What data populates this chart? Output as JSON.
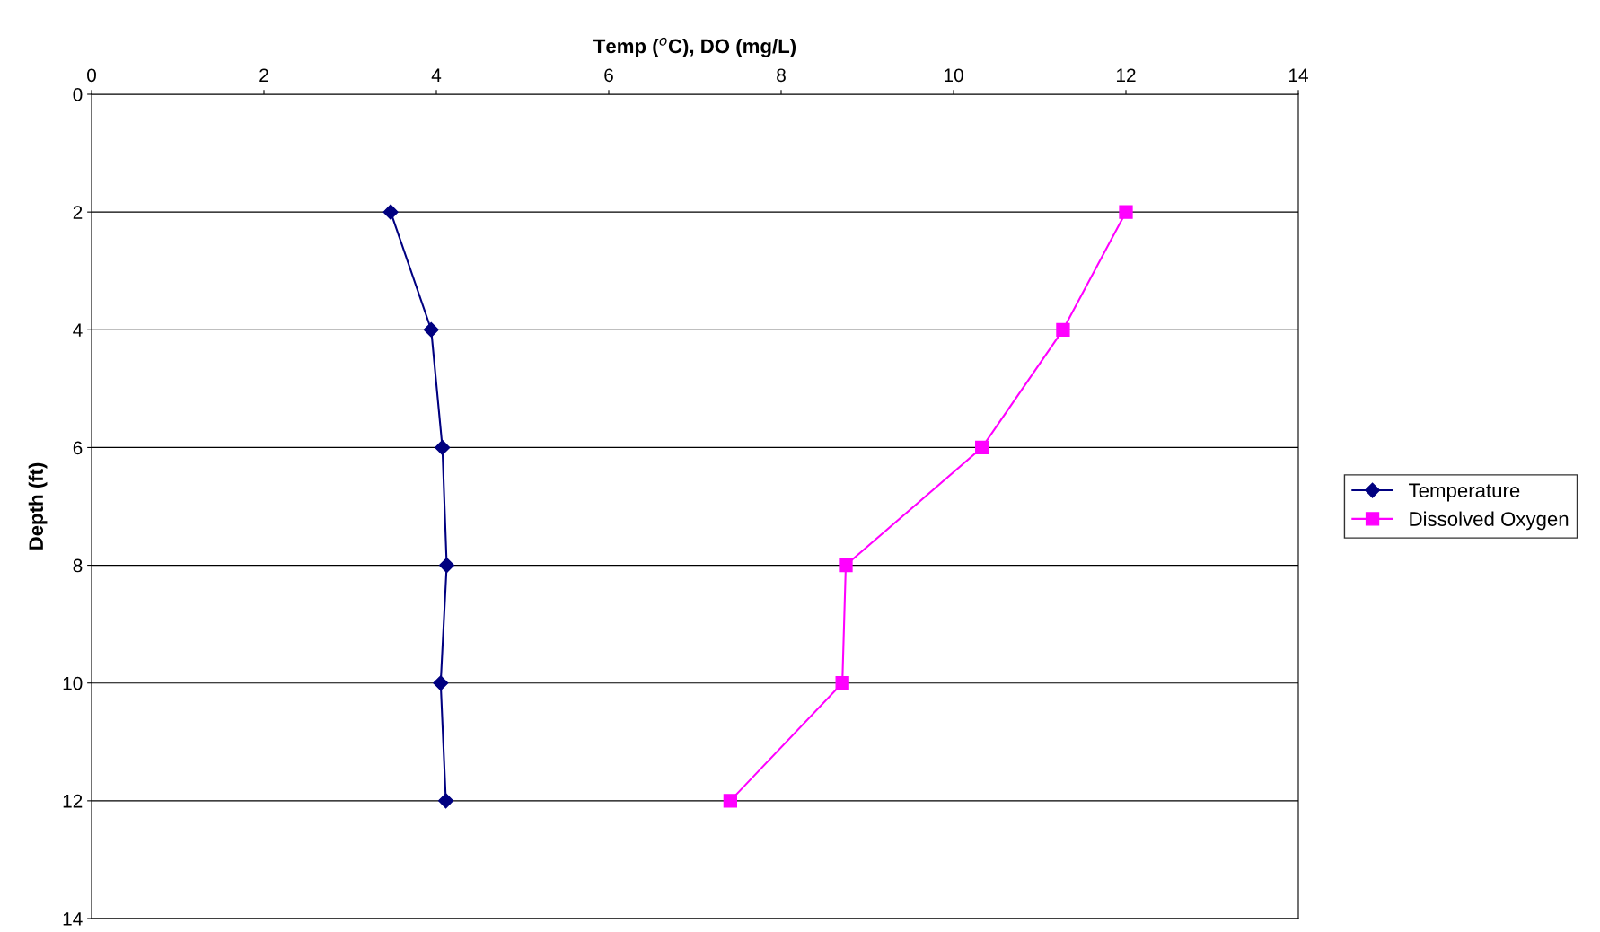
{
  "chart_data": {
    "type": "line",
    "xlabel": "Temp ($^{o}$C), DO (mg/L)",
    "ylabel": "Depth (ft)",
    "series": [
      {
        "name": "Temperature",
        "color": "#000080",
        "marker": "diamond",
        "x": [
          3.47,
          3.94,
          4.07,
          4.12,
          4.05,
          4.11
        ],
        "values": [
          2,
          4,
          6,
          8,
          10,
          12
        ]
      },
      {
        "name": "Dissolved Oxygen",
        "color": "#ff00ff",
        "marker": "square",
        "x": [
          12.0,
          11.27,
          10.33,
          8.75,
          8.71,
          7.41
        ],
        "values": [
          2,
          4,
          6,
          8,
          10,
          12
        ]
      }
    ],
    "xlim": [
      0,
      14
    ],
    "xticks": [
      0,
      2,
      4,
      6,
      8,
      10,
      12,
      14
    ],
    "ylim": [
      14,
      0
    ],
    "yticks": [
      0,
      2,
      4,
      6,
      8,
      10,
      12,
      14
    ],
    "grid": "y",
    "legend": "right",
    "line_style": "solid"
  }
}
